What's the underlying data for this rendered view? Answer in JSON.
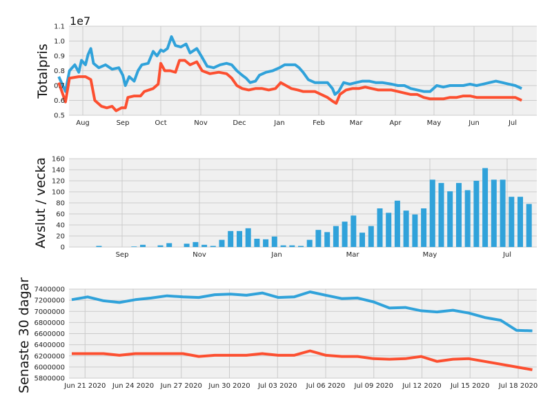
{
  "colors": {
    "blue": "#30a2da",
    "red": "#fc4f30",
    "panel_bg": "#f0f0f0",
    "grid": "#cbcbcb"
  },
  "chart_data": [
    {
      "type": "line",
      "ylabel": "Totalpris",
      "offset_label": "1e7",
      "ylim": [
        0.5,
        1.1
      ],
      "yticks": [
        "0.5",
        "0.6",
        "0.7",
        "0.8",
        "0.9",
        "1.0",
        "1.1"
      ],
      "xticks": [
        "Aug",
        "Sep",
        "Oct",
        "Nov",
        "Dec",
        "Jan",
        "Feb",
        "Mar",
        "Apr",
        "May",
        "Jun",
        "Jul"
      ],
      "grid": true,
      "series": [
        {
          "color": "#30a2da",
          "points": [
            [
              0,
              0.76
            ],
            [
              0.5,
              0.66
            ],
            [
              0.8,
              0.8
            ],
            [
              1.2,
              0.84
            ],
            [
              1.5,
              0.79
            ],
            [
              1.7,
              0.87
            ],
            [
              2.0,
              0.84
            ],
            [
              2.2,
              0.91
            ],
            [
              2.4,
              0.95
            ],
            [
              2.6,
              0.85
            ],
            [
              3.0,
              0.82
            ],
            [
              3.5,
              0.84
            ],
            [
              4.0,
              0.81
            ],
            [
              4.5,
              0.82
            ],
            [
              4.8,
              0.77
            ],
            [
              5.0,
              0.7
            ],
            [
              5.3,
              0.76
            ],
            [
              5.7,
              0.73
            ],
            [
              6.0,
              0.8
            ],
            [
              6.3,
              0.84
            ],
            [
              6.8,
              0.85
            ],
            [
              7.2,
              0.93
            ],
            [
              7.5,
              0.9
            ],
            [
              7.8,
              0.94
            ],
            [
              8.0,
              0.93
            ],
            [
              8.3,
              0.95
            ],
            [
              8.6,
              1.03
            ],
            [
              8.9,
              0.97
            ],
            [
              9.3,
              0.96
            ],
            [
              9.7,
              0.98
            ],
            [
              10.0,
              0.92
            ],
            [
              10.5,
              0.95
            ],
            [
              10.9,
              0.89
            ],
            [
              11.3,
              0.83
            ],
            [
              11.8,
              0.82
            ],
            [
              12.3,
              0.84
            ],
            [
              12.8,
              0.85
            ],
            [
              13.2,
              0.84
            ],
            [
              13.6,
              0.8
            ],
            [
              14.0,
              0.77
            ],
            [
              14.3,
              0.75
            ],
            [
              14.6,
              0.72
            ],
            [
              15.0,
              0.73
            ],
            [
              15.3,
              0.77
            ],
            [
              15.8,
              0.79
            ],
            [
              16.3,
              0.8
            ],
            [
              16.8,
              0.82
            ],
            [
              17.2,
              0.84
            ],
            [
              17.6,
              0.84
            ],
            [
              18.0,
              0.84
            ],
            [
              18.3,
              0.82
            ],
            [
              18.6,
              0.79
            ],
            [
              19.0,
              0.74
            ],
            [
              19.5,
              0.72
            ],
            [
              20.0,
              0.72
            ],
            [
              20.5,
              0.72
            ],
            [
              20.9,
              0.68
            ],
            [
              21.1,
              0.64
            ],
            [
              21.4,
              0.66
            ],
            [
              21.8,
              0.72
            ],
            [
              22.3,
              0.71
            ],
            [
              22.8,
              0.72
            ],
            [
              23.3,
              0.73
            ],
            [
              23.8,
              0.73
            ],
            [
              24.3,
              0.72
            ],
            [
              24.8,
              0.72
            ],
            [
              25.5,
              0.71
            ],
            [
              26.0,
              0.7
            ],
            [
              26.5,
              0.7
            ],
            [
              27.0,
              0.68
            ],
            [
              27.5,
              0.67
            ],
            [
              28.0,
              0.66
            ],
            [
              28.5,
              0.66
            ],
            [
              29.0,
              0.7
            ],
            [
              29.5,
              0.69
            ],
            [
              30.0,
              0.7
            ],
            [
              30.5,
              0.7
            ],
            [
              31.0,
              0.7
            ],
            [
              31.5,
              0.71
            ],
            [
              32.0,
              0.7
            ],
            [
              32.5,
              0.71
            ],
            [
              33.0,
              0.72
            ],
            [
              33.5,
              0.73
            ],
            [
              34.0,
              0.72
            ],
            [
              34.5,
              0.71
            ],
            [
              35.0,
              0.7
            ],
            [
              35.5,
              0.68
            ]
          ]
        },
        {
          "color": "#fc4f30",
          "points": [
            [
              0,
              0.72
            ],
            [
              0.5,
              0.59
            ],
            [
              0.8,
              0.75
            ],
            [
              1.5,
              0.76
            ],
            [
              2.0,
              0.76
            ],
            [
              2.4,
              0.74
            ],
            [
              2.7,
              0.6
            ],
            [
              3.2,
              0.56
            ],
            [
              3.6,
              0.55
            ],
            [
              4.0,
              0.56
            ],
            [
              4.3,
              0.53
            ],
            [
              4.7,
              0.55
            ],
            [
              5.0,
              0.55
            ],
            [
              5.2,
              0.62
            ],
            [
              5.7,
              0.63
            ],
            [
              6.2,
              0.63
            ],
            [
              6.5,
              0.66
            ],
            [
              7.2,
              0.68
            ],
            [
              7.6,
              0.71
            ],
            [
              7.8,
              0.85
            ],
            [
              8.1,
              0.8
            ],
            [
              8.5,
              0.8
            ],
            [
              8.9,
              0.79
            ],
            [
              9.2,
              0.87
            ],
            [
              9.6,
              0.87
            ],
            [
              10.0,
              0.84
            ],
            [
              10.5,
              0.86
            ],
            [
              10.9,
              0.8
            ],
            [
              11.5,
              0.78
            ],
            [
              12.2,
              0.79
            ],
            [
              12.8,
              0.78
            ],
            [
              13.2,
              0.75
            ],
            [
              13.6,
              0.7
            ],
            [
              14.0,
              0.68
            ],
            [
              14.5,
              0.67
            ],
            [
              15.0,
              0.68
            ],
            [
              15.5,
              0.68
            ],
            [
              16.0,
              0.67
            ],
            [
              16.5,
              0.68
            ],
            [
              16.9,
              0.72
            ],
            [
              17.3,
              0.7
            ],
            [
              17.7,
              0.68
            ],
            [
              18.2,
              0.67
            ],
            [
              18.6,
              0.66
            ],
            [
              19.0,
              0.66
            ],
            [
              19.5,
              0.66
            ],
            [
              20.0,
              0.64
            ],
            [
              20.5,
              0.62
            ],
            [
              21.0,
              0.59
            ],
            [
              21.2,
              0.58
            ],
            [
              21.5,
              0.64
            ],
            [
              22.0,
              0.67
            ],
            [
              22.5,
              0.68
            ],
            [
              23.0,
              0.68
            ],
            [
              23.5,
              0.69
            ],
            [
              24.0,
              0.68
            ],
            [
              24.5,
              0.67
            ],
            [
              25.0,
              0.67
            ],
            [
              25.5,
              0.67
            ],
            [
              26.0,
              0.66
            ],
            [
              26.5,
              0.65
            ],
            [
              27.0,
              0.64
            ],
            [
              27.5,
              0.64
            ],
            [
              28.0,
              0.62
            ],
            [
              28.5,
              0.61
            ],
            [
              29.0,
              0.61
            ],
            [
              29.5,
              0.61
            ],
            [
              30.0,
              0.62
            ],
            [
              30.5,
              0.62
            ],
            [
              31.0,
              0.63
            ],
            [
              31.5,
              0.63
            ],
            [
              32.0,
              0.62
            ],
            [
              32.5,
              0.62
            ],
            [
              33.0,
              0.62
            ],
            [
              33.5,
              0.62
            ],
            [
              34.0,
              0.62
            ],
            [
              34.5,
              0.62
            ],
            [
              35.0,
              0.62
            ],
            [
              35.5,
              0.6
            ]
          ]
        }
      ]
    },
    {
      "type": "bar",
      "ylabel": "Avslut / vecka",
      "ylim": [
        0,
        160
      ],
      "yticks": [
        "0",
        "20",
        "40",
        "60",
        "80",
        "100",
        "120",
        "140",
        "160"
      ],
      "xticks": [
        "Sep",
        "Nov",
        "Jan",
        "Mar",
        "May",
        "Jul"
      ],
      "grid": true,
      "color": "#30a2da",
      "values": [
        0,
        0,
        2,
        0,
        0,
        0,
        1,
        4,
        0,
        3,
        7,
        0,
        6,
        9,
        4,
        2,
        13,
        29,
        29,
        34,
        15,
        14,
        19,
        3,
        3,
        2,
        13,
        31,
        27,
        38,
        46,
        57,
        26,
        38,
        70,
        62,
        84,
        66,
        59,
        70,
        122,
        116,
        101,
        116,
        103,
        120,
        143,
        122,
        122,
        91,
        91,
        78
      ]
    },
    {
      "type": "line",
      "ylabel": "Senaste 30 dagar",
      "ylim": [
        5800000,
        7400000
      ],
      "yticks": [
        "5800000",
        "6000000",
        "6200000",
        "6400000",
        "6600000",
        "6800000",
        "7000000",
        "7200000",
        "7400000"
      ],
      "xticks": [
        "Jun 21 2020",
        "Jun 24 2020",
        "Jun 27 2020",
        "Jun 30 2020",
        "Jul 03 2020",
        "Jul 06 2020",
        "Jul 09 2020",
        "Jul 12 2020",
        "Jul 15 2020",
        "Jul 18 2020"
      ],
      "grid": true,
      "series": [
        {
          "color": "#30a2da",
          "values": [
            7210000,
            7260000,
            7190000,
            7160000,
            7210000,
            7240000,
            7280000,
            7260000,
            7250000,
            7300000,
            7310000,
            7290000,
            7330000,
            7250000,
            7260000,
            7350000,
            7290000,
            7230000,
            7240000,
            7170000,
            7060000,
            7070000,
            7010000,
            6990000,
            7020000,
            6970000,
            6890000,
            6840000,
            6660000,
            6650000
          ]
        },
        {
          "color": "#fc4f30",
          "values": [
            6240000,
            6240000,
            6240000,
            6210000,
            6240000,
            6240000,
            6240000,
            6240000,
            6190000,
            6210000,
            6210000,
            6210000,
            6240000,
            6210000,
            6210000,
            6290000,
            6210000,
            6190000,
            6190000,
            6150000,
            6140000,
            6150000,
            6190000,
            6100000,
            6140000,
            6150000,
            6100000,
            6050000,
            6000000,
            5950000
          ]
        }
      ]
    }
  ]
}
